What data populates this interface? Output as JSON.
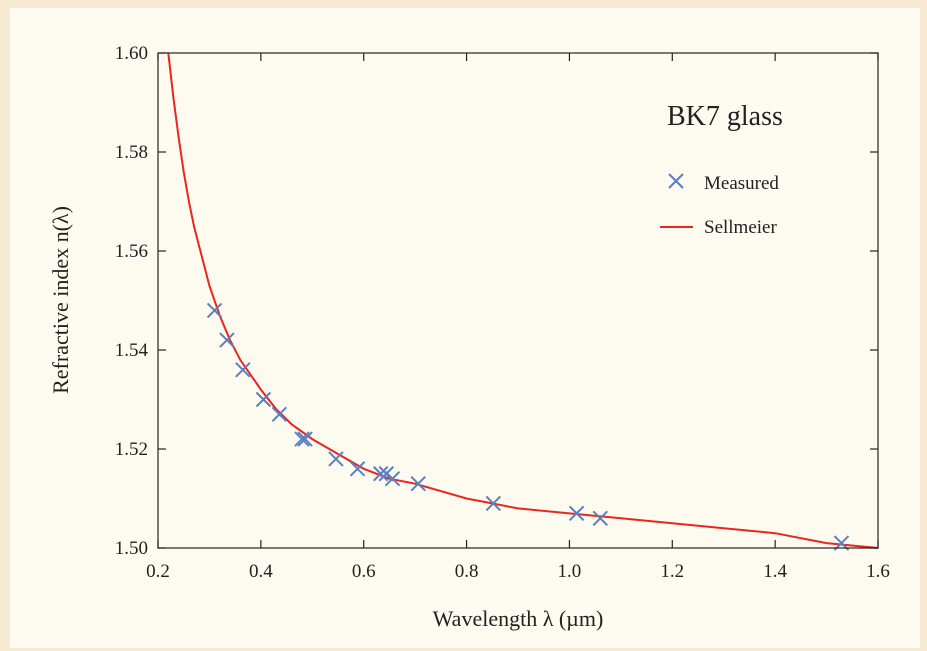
{
  "chart_data": {
    "type": "line",
    "xlabel": "Wavelength λ (µm)",
    "ylabel": "Refractive index n(λ)",
    "xlim": [
      0.2,
      1.6
    ],
    "ylim": [
      1.5,
      1.6
    ],
    "xticks": [
      "0.2",
      "0.4",
      "0.6",
      "0.8",
      "1.0",
      "1.2",
      "1.4",
      "1.6"
    ],
    "yticks": [
      "1.50",
      "1.52",
      "1.54",
      "1.56",
      "1.58",
      "1.60"
    ],
    "legend_title": "BK7 glass",
    "legend_position": "top-right",
    "grid": false,
    "series": [
      {
        "name": "Measured",
        "marker": "x",
        "color": "#5b7fc0",
        "x": [
          0.31,
          0.334,
          0.365,
          0.405,
          0.436,
          0.48,
          0.486,
          0.546,
          0.588,
          0.633,
          0.644,
          0.656,
          0.706,
          0.852,
          1.014,
          1.06,
          1.529
        ],
        "y": [
          1.548,
          1.542,
          1.536,
          1.53,
          1.527,
          1.522,
          1.522,
          1.518,
          1.516,
          1.515,
          1.515,
          1.514,
          1.513,
          1.509,
          1.507,
          1.506,
          1.501
        ]
      },
      {
        "name": "Sellmeier",
        "line": true,
        "color": "#e8261f",
        "x": [
          0.22,
          0.23,
          0.24,
          0.25,
          0.26,
          0.27,
          0.28,
          0.29,
          0.3,
          0.32,
          0.34,
          0.36,
          0.38,
          0.4,
          0.43,
          0.46,
          0.5,
          0.55,
          0.6,
          0.65,
          0.7,
          0.8,
          0.9,
          1.0,
          1.1,
          1.2,
          1.3,
          1.4,
          1.5,
          1.6
        ],
        "y": [
          1.6,
          1.591,
          1.583,
          1.576,
          1.57,
          1.565,
          1.561,
          1.557,
          1.553,
          1.547,
          1.542,
          1.538,
          1.535,
          1.532,
          1.528,
          1.525,
          1.522,
          1.519,
          1.516,
          1.514,
          1.513,
          1.51,
          1.508,
          1.507,
          1.506,
          1.505,
          1.504,
          1.503,
          1.501,
          1.5
        ]
      }
    ]
  }
}
